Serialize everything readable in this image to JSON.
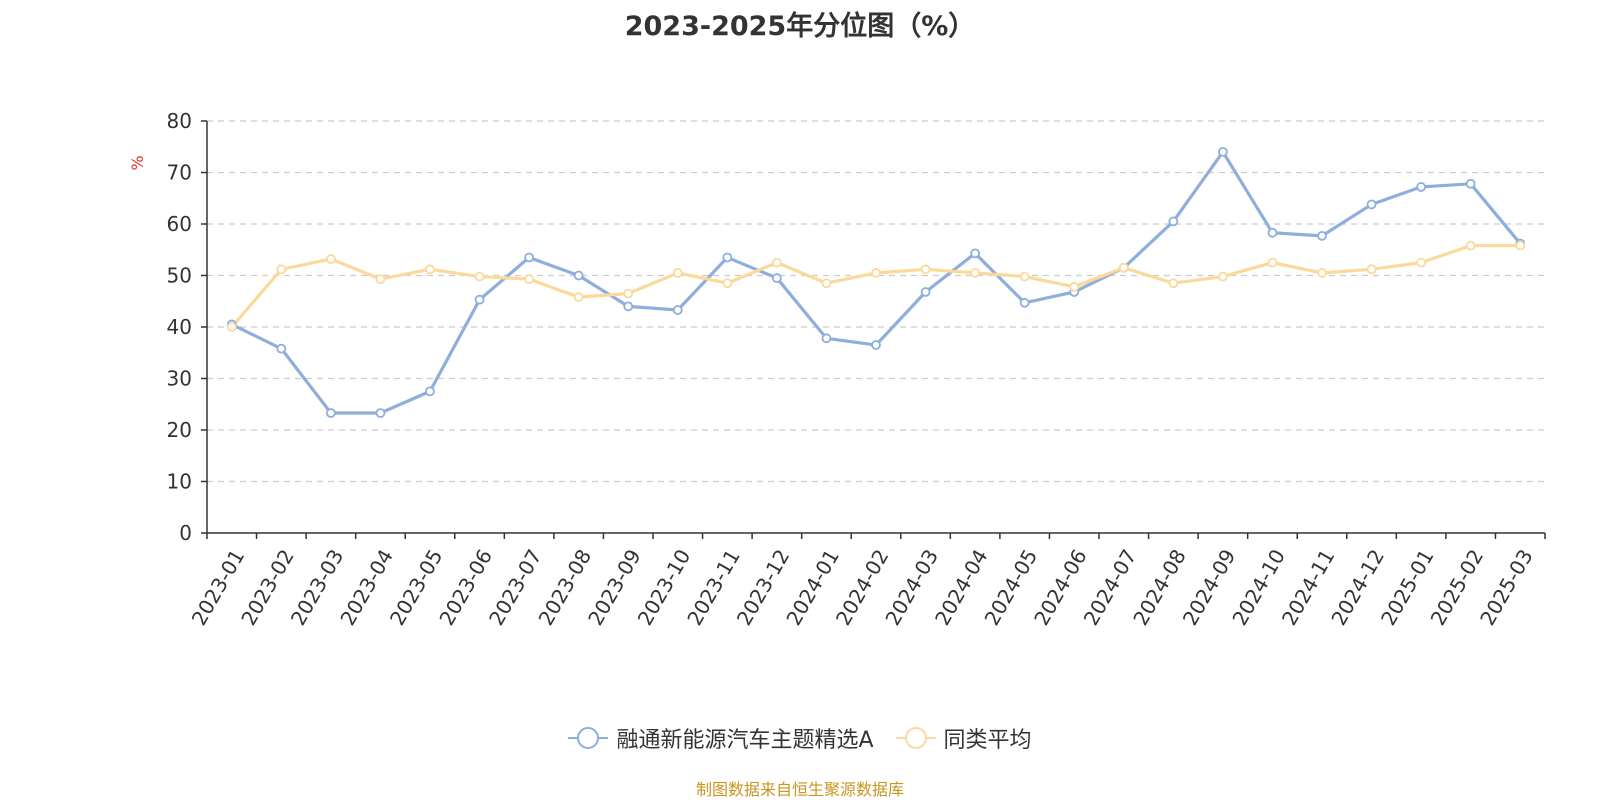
{
  "chart_data": {
    "type": "line",
    "title": "2023-2025年分位图（%）",
    "y_unit": "%",
    "ylim": [
      0,
      80
    ],
    "y_ticks": [
      0,
      10,
      20,
      30,
      40,
      50,
      60,
      70,
      80
    ],
    "grid": "horizontal-dashed",
    "legend_position": "bottom-center",
    "categories": [
      "2023-01",
      "2023-02",
      "2023-03",
      "2023-04",
      "2023-05",
      "2023-06",
      "2023-07",
      "2023-08",
      "2023-09",
      "2023-10",
      "2023-11",
      "2023-12",
      "2024-01",
      "2024-02",
      "2024-03",
      "2024-04",
      "2024-05",
      "2024-06",
      "2024-07",
      "2024-08",
      "2024-09",
      "2024-10",
      "2024-11",
      "2024-12",
      "2025-01",
      "2025-02",
      "2025-03"
    ],
    "series": [
      {
        "name": "融通新能源汽车主题精选A",
        "color": "#8eaedb",
        "values": [
          40.5,
          35.8,
          23.3,
          23.3,
          27.5,
          45.3,
          53.5,
          50.0,
          44.0,
          43.3,
          53.5,
          49.5,
          37.8,
          36.5,
          46.8,
          54.3,
          44.7,
          46.8,
          51.5,
          60.5,
          74.0,
          58.3,
          57.7,
          63.8,
          67.2,
          67.8,
          56.2
        ]
      },
      {
        "name": "同类平均",
        "color": "#fbd99b",
        "values": [
          40.0,
          51.2,
          53.2,
          49.3,
          51.2,
          49.8,
          49.3,
          45.8,
          46.5,
          50.5,
          48.5,
          52.5,
          48.5,
          50.5,
          51.2,
          50.5,
          49.8,
          47.8,
          51.5,
          48.5,
          49.8,
          52.5,
          50.5,
          51.2,
          52.5,
          55.8,
          55.8
        ]
      }
    ]
  },
  "footer": {
    "source": "制图数据来自恒生聚源数据库",
    "source_color": "#c8961e",
    "unit_color": "#e03030"
  }
}
